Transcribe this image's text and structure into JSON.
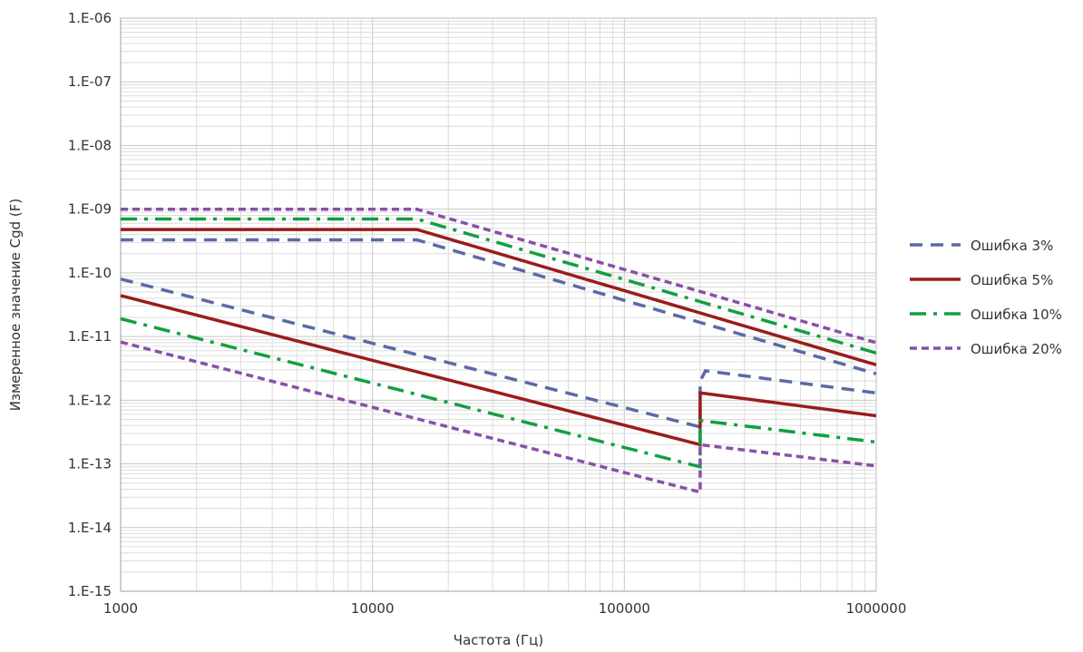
{
  "chart_data": {
    "type": "line",
    "title": "",
    "xlabel": "Частота (Гц)",
    "ylabel": "Измеренное значение Cgd (F)",
    "x_scale": "log",
    "y_scale": "log",
    "xlim": [
      1000,
      1000000
    ],
    "ylim": [
      1e-15,
      1e-06
    ],
    "x_ticks": [
      {
        "value": 1000,
        "label": "1000"
      },
      {
        "value": 10000,
        "label": "10000"
      },
      {
        "value": 100000,
        "label": "100000"
      },
      {
        "value": 1000000,
        "label": "1000000"
      }
    ],
    "y_ticks": [
      {
        "value": 1e-15,
        "label": "1.E-15"
      },
      {
        "value": 1e-14,
        "label": "1.E-14"
      },
      {
        "value": 1e-13,
        "label": "1.E-13"
      },
      {
        "value": 1e-12,
        "label": "1.E-12"
      },
      {
        "value": 1e-11,
        "label": "1.E-11"
      },
      {
        "value": 1e-10,
        "label": "1.E-10"
      },
      {
        "value": 1e-09,
        "label": "1.E-09"
      },
      {
        "value": 1e-08,
        "label": "1.E-08"
      },
      {
        "value": 1e-07,
        "label": "1.E-07"
      },
      {
        "value": 1e-06,
        "label": "1.E-06"
      }
    ],
    "grid": true,
    "legend_position": "right",
    "series": [
      {
        "name": "Ошибка 3%",
        "color": "#5b6aa6",
        "dash": "dash",
        "upper": [
          [
            1000,
            3.3e-10
          ],
          [
            15000,
            3.3e-10
          ],
          [
            1000000,
            2.6e-12
          ]
        ],
        "lower": [
          [
            1000,
            8e-11
          ],
          [
            200000,
            3.8e-13
          ],
          [
            200000,
            2e-12
          ],
          [
            210000,
            2.9e-12
          ],
          [
            1000000,
            1.3e-12
          ]
        ]
      },
      {
        "name": "Ошибка 5%",
        "color": "#9b1c1c",
        "dash": "solid",
        "upper": [
          [
            1000,
            4.8e-10
          ],
          [
            15000,
            4.8e-10
          ],
          [
            1000000,
            3.6e-12
          ]
        ],
        "lower": [
          [
            1000,
            4.4e-11
          ],
          [
            200000,
            2e-13
          ],
          [
            200000,
            1.3e-12
          ],
          [
            1000000,
            5.7e-13
          ]
        ]
      },
      {
        "name": "Ошибка 10%",
        "color": "#10a040",
        "dash": "dashdot",
        "upper": [
          [
            1000,
            7e-10
          ],
          [
            15000,
            7e-10
          ],
          [
            1000000,
            5.5e-12
          ]
        ],
        "lower": [
          [
            1000,
            1.9e-11
          ],
          [
            200000,
            9e-14
          ],
          [
            200000,
            4.8e-13
          ],
          [
            1000000,
            2.2e-13
          ]
        ]
      },
      {
        "name": "Ошибка 20%",
        "color": "#8a4fa8",
        "dash": "shortdash",
        "upper": [
          [
            1000,
            1e-09
          ],
          [
            15000,
            1e-09
          ],
          [
            1000000,
            8e-12
          ]
        ],
        "lower": [
          [
            1000,
            8.2e-12
          ],
          [
            200000,
            3.6e-14
          ],
          [
            200000,
            2e-13
          ],
          [
            1000000,
            9.3e-14
          ]
        ]
      }
    ]
  }
}
